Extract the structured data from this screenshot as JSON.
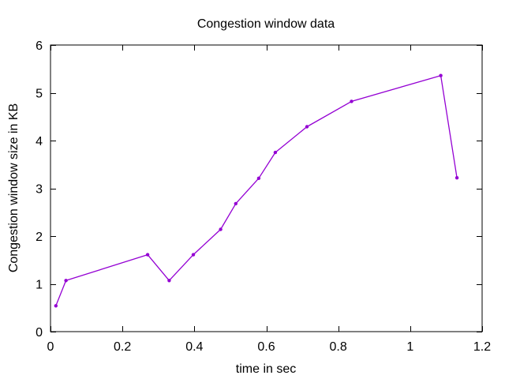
{
  "chart_data": {
    "type": "line",
    "title": "Congestion window data",
    "xlabel": "time in sec",
    "ylabel": "Congestion window size in KB",
    "xlim": [
      0,
      1.2
    ],
    "ylim": [
      0,
      6
    ],
    "xticks": [
      0,
      0.2,
      0.4,
      0.6,
      0.8,
      1.0,
      1.2
    ],
    "xtick_labels": [
      "0",
      "0.2",
      "0.4",
      "0.6",
      "0.8",
      "1",
      "1.2"
    ],
    "yticks": [
      0,
      1,
      2,
      3,
      4,
      5,
      6
    ],
    "ytick_labels": [
      "0",
      "1",
      "2",
      "3",
      "4",
      "5",
      "6"
    ],
    "grid": false,
    "legend": "none",
    "series": [
      {
        "color": "#9400d3",
        "marker": "point",
        "x": [
          0.015,
          0.043,
          0.27,
          0.33,
          0.397,
          0.473,
          0.515,
          0.579,
          0.625,
          0.713,
          0.837,
          1.085,
          1.13
        ],
        "y": [
          0.54,
          1.07,
          1.61,
          1.07,
          1.61,
          2.14,
          2.68,
          3.21,
          3.75,
          4.29,
          4.82,
          5.36,
          3.22
        ]
      }
    ]
  }
}
